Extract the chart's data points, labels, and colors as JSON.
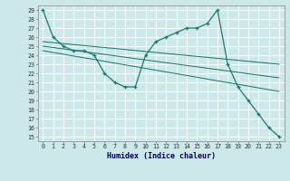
{
  "xlabel": "Humidex (Indice chaleur)",
  "bg_color": "#cce8e8",
  "grid_color": "#ffffff",
  "line_color": "#1a7a6e",
  "xlim": [
    -0.5,
    23.5
  ],
  "ylim": [
    14.5,
    29.5
  ],
  "xticks": [
    0,
    1,
    2,
    3,
    4,
    5,
    6,
    7,
    8,
    9,
    10,
    11,
    12,
    13,
    14,
    15,
    16,
    17,
    18,
    19,
    20,
    21,
    22,
    23
  ],
  "yticks": [
    15,
    16,
    17,
    18,
    19,
    20,
    21,
    22,
    23,
    24,
    25,
    26,
    27,
    28,
    29
  ],
  "main_x": [
    0,
    1,
    2,
    3,
    4,
    5,
    6,
    7,
    8,
    9,
    10,
    11,
    12,
    13,
    14,
    15,
    16,
    17,
    18,
    19,
    20,
    21,
    22,
    23
  ],
  "main_y": [
    29,
    26,
    25,
    24.5,
    24.5,
    24,
    22,
    21,
    20.5,
    20.5,
    24,
    25.5,
    26,
    26.5,
    27,
    27,
    27.5,
    29,
    23,
    20.5,
    19,
    17.5,
    16,
    15
  ],
  "line1": {
    "x": [
      0,
      23
    ],
    "y": [
      25.5,
      23.0
    ]
  },
  "line2": {
    "x": [
      0,
      23
    ],
    "y": [
      25.0,
      21.5
    ]
  },
  "line3": {
    "x": [
      0,
      23
    ],
    "y": [
      24.5,
      20.0
    ]
  }
}
